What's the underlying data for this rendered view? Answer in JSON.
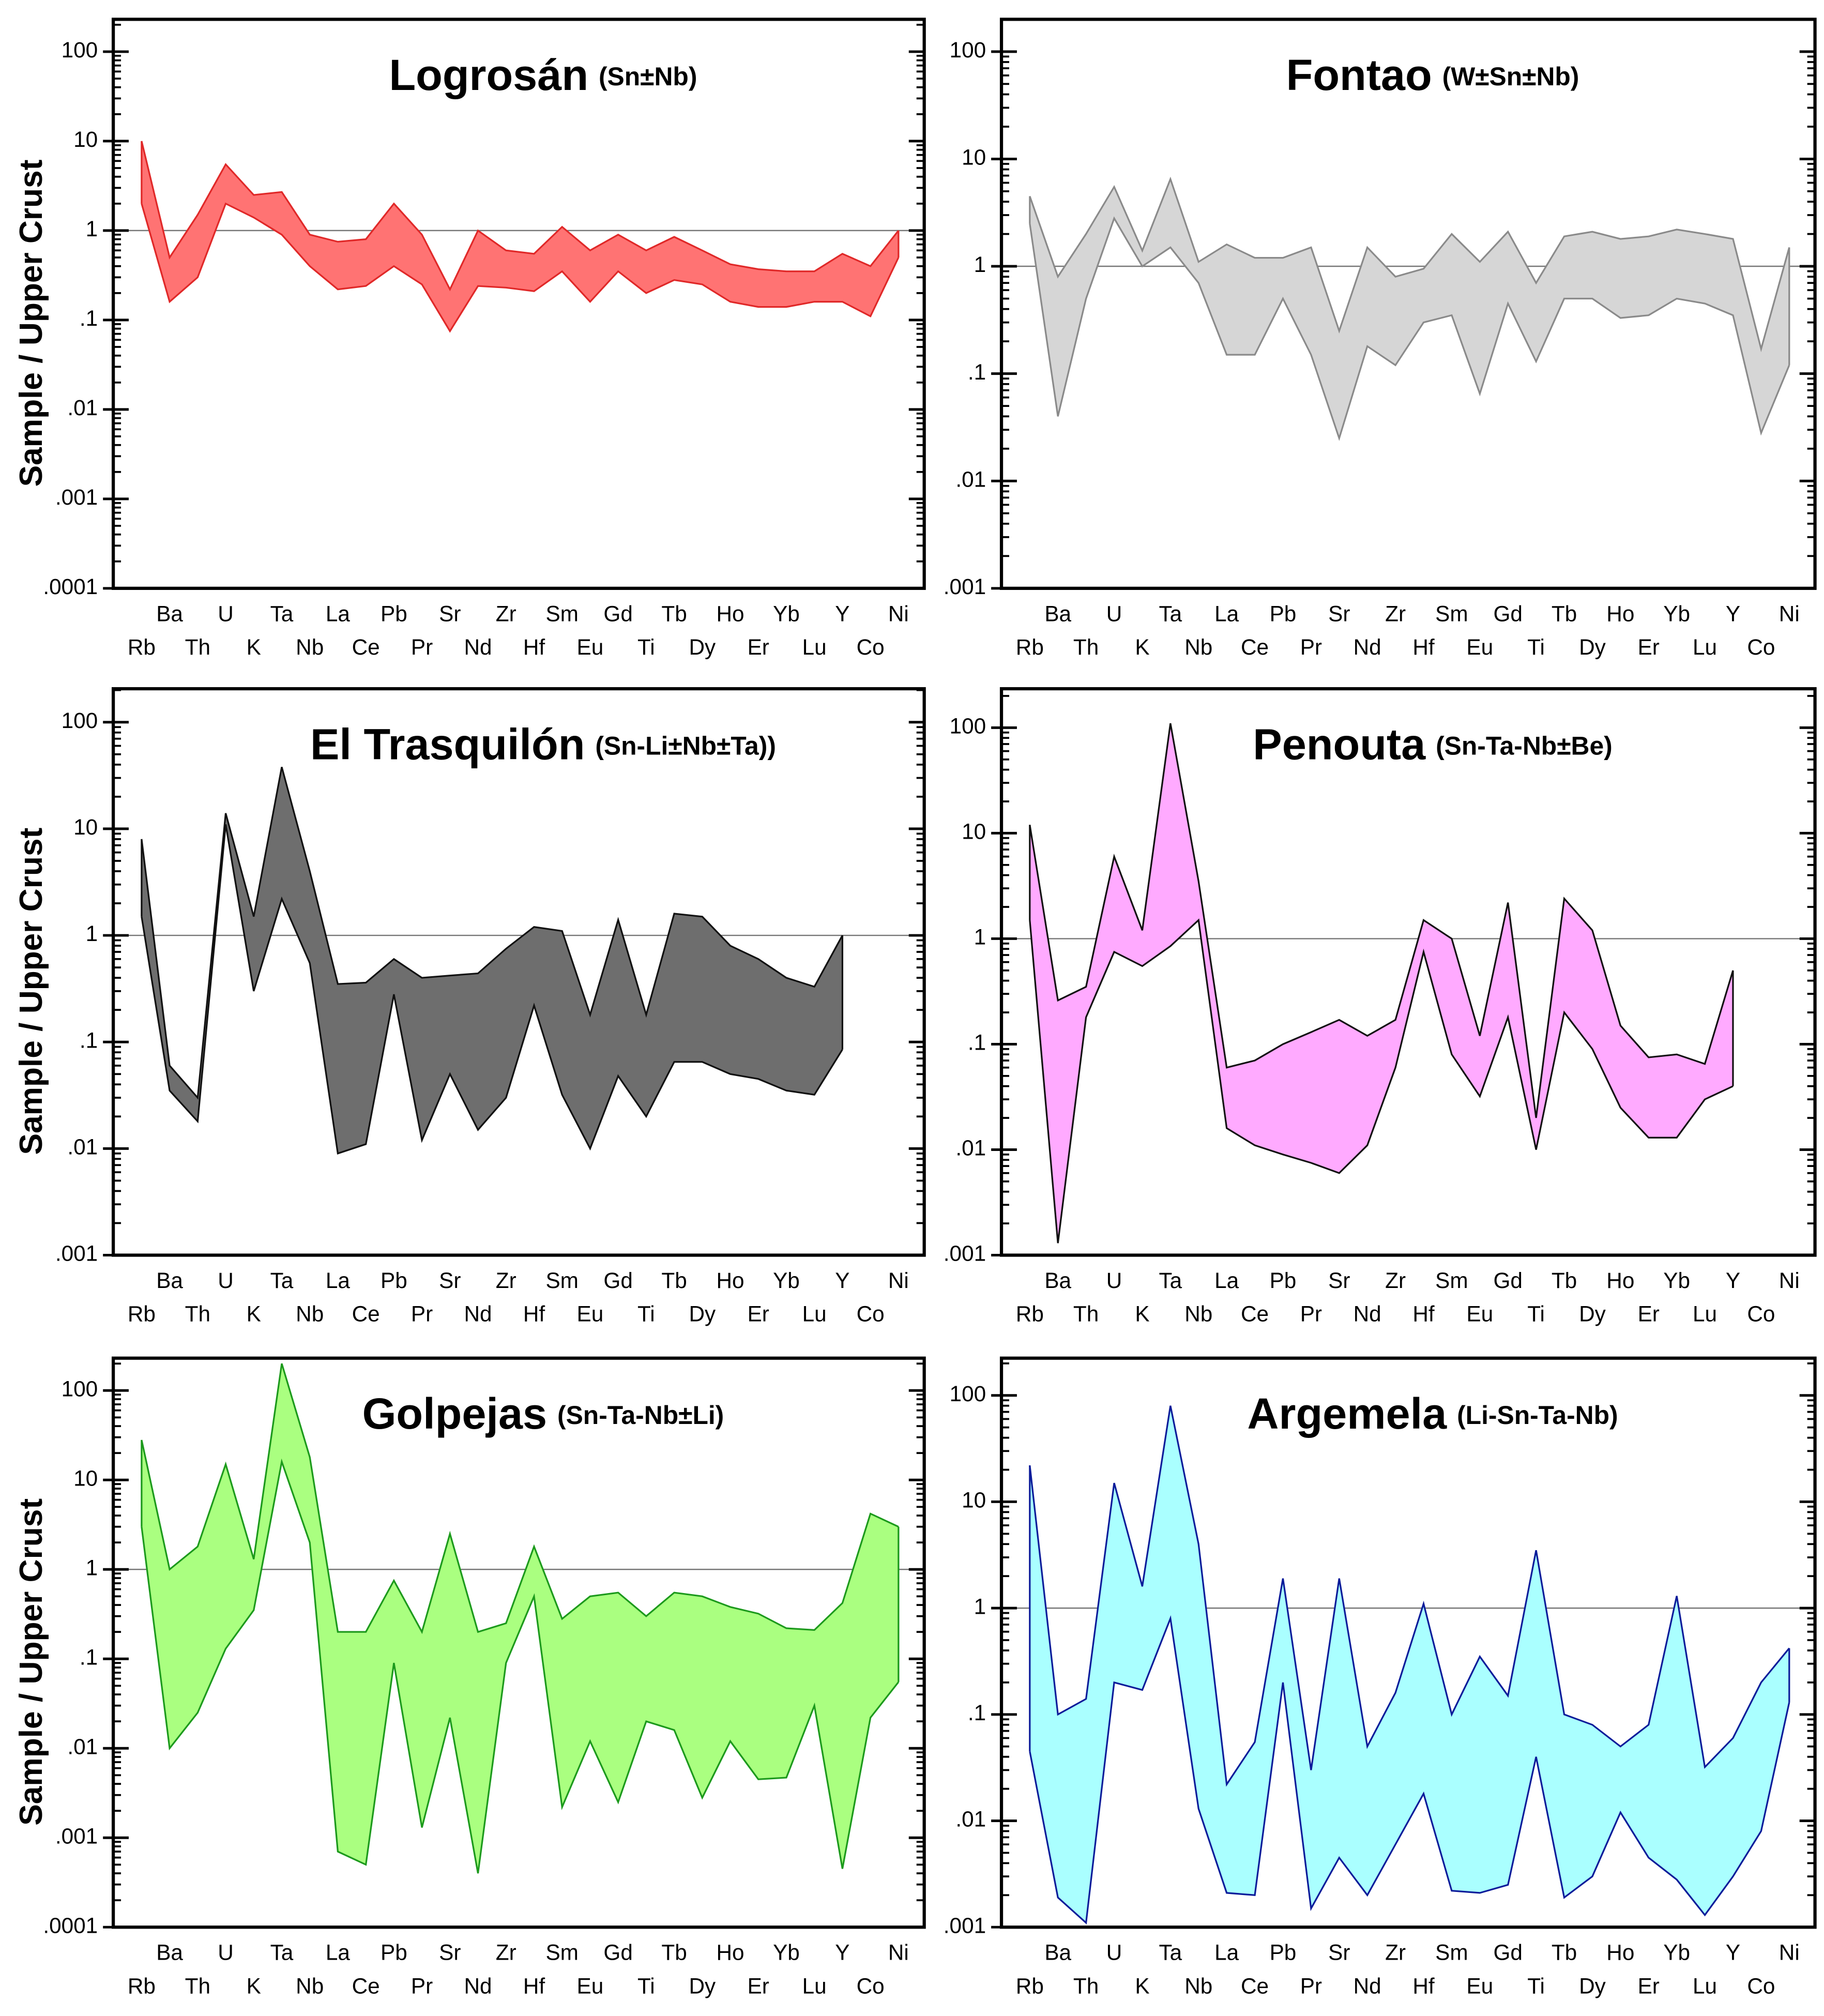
{
  "chart_data": [
    {
      "type": "area",
      "title": "Logrosán",
      "subtitle": "(Sn±Nb)",
      "ylabel": "Sample / Upper Crust",
      "log": true,
      "fill": "#ff7373",
      "color": "#e02828",
      "categories": [
        "Rb",
        "Ba",
        "Th",
        "U",
        "K",
        "Ta",
        "Nb",
        "La",
        "Ce",
        "Pb",
        "Pr",
        "Sr",
        "Nd",
        "Zr",
        "Hf",
        "Sm",
        "Eu",
        "Gd",
        "Ti",
        "Tb",
        "Dy",
        "Ho",
        "Er",
        "Yb",
        "Lu",
        "Y",
        "Co",
        "Ni"
      ],
      "ylim": [
        0.0001,
        230
      ],
      "yticks": [
        100,
        10,
        1,
        {
          "value": 0.1,
          "label": ".1"
        },
        {
          "value": 0.01,
          "label": ".01"
        },
        {
          "value": 0.001,
          "label": ".001"
        },
        {
          "value": 0.0001,
          "label": ".0001"
        }
      ],
      "hline": 1,
      "series": [
        {
          "values": [
            10,
            0.5,
            1.5,
            5.5,
            2.5,
            2.7,
            0.9,
            0.75,
            0.8,
            2,
            0.9,
            0.22,
            1,
            0.6,
            0.55,
            1.1,
            0.6,
            0.9,
            0.6,
            0.85,
            0.6,
            0.42,
            0.37,
            0.35,
            0.35,
            0.55,
            0.4,
            1
          ]
        },
        {
          "values": [
            2,
            0.16,
            0.3,
            2,
            1.4,
            0.9,
            0.4,
            0.22,
            0.24,
            0.4,
            0.25,
            0.075,
            0.24,
            0.23,
            0.21,
            0.35,
            0.16,
            0.35,
            0.2,
            0.28,
            0.25,
            0.16,
            0.14,
            0.14,
            0.16,
            0.16,
            0.11,
            0.5
          ]
        }
      ]
    },
    {
      "type": "area",
      "title": "Fontao",
      "subtitle": "(W±Sn±Nb)",
      "log": true,
      "fill": "#d6d6d6",
      "color": "#8a8a8a",
      "categories": [
        "Rb",
        "Ba",
        "Th",
        "U",
        "K",
        "Ta",
        "Nb",
        "La",
        "Ce",
        "Pb",
        "Pr",
        "Sr",
        "Nd",
        "Zr",
        "Hf",
        "Sm",
        "Eu",
        "Gd",
        "Ti",
        "Tb",
        "Dy",
        "Ho",
        "Er",
        "Yb",
        "Lu",
        "Y",
        "Co",
        "Ni"
      ],
      "ylim": [
        0.001,
        200
      ],
      "yticks": [
        100,
        10,
        1,
        {
          "value": 0.1,
          "label": ".1"
        },
        {
          "value": 0.01,
          "label": ".01"
        },
        {
          "value": 0.001,
          "label": ".001"
        }
      ],
      "hline": 1,
      "series": [
        {
          "values": [
            4.5,
            0.8,
            2,
            5.5,
            1.4,
            6.5,
            1.1,
            1.6,
            1.2,
            1.2,
            1.5,
            0.25,
            1.5,
            0.8,
            0.95,
            2,
            1.1,
            2.1,
            0.7,
            1.9,
            2.1,
            1.8,
            1.9,
            2.2,
            2,
            1.8,
            0.17,
            1.5
          ]
        },
        {
          "values": [
            2.5,
            0.04,
            0.5,
            2.8,
            1,
            1.5,
            0.7,
            0.15,
            0.15,
            0.5,
            0.15,
            0.025,
            0.18,
            0.12,
            0.3,
            0.35,
            0.065,
            0.45,
            0.13,
            0.5,
            0.5,
            0.33,
            0.35,
            0.5,
            0.45,
            0.35,
            0.028,
            0.12
          ]
        }
      ]
    },
    {
      "type": "area",
      "title": "El Trasquilón",
      "subtitle": "(Sn-Li±Nb±Ta))",
      "ylabel": "Sample / Upper Crust",
      "log": true,
      "fill": "#6e6e6e",
      "color": "#111111",
      "categories": [
        "Rb",
        "Ba",
        "Th",
        "U",
        "K",
        "Ta",
        "Nb",
        "La",
        "Ce",
        "Pb",
        "Pr",
        "Sr",
        "Nd",
        "Zr",
        "Hf",
        "Sm",
        "Eu",
        "Gd",
        "Ti",
        "Tb",
        "Dy",
        "Ho",
        "Er",
        "Yb",
        "Lu",
        "Y",
        "Co",
        "Ni"
      ],
      "ylim": [
        0.001,
        206
      ],
      "yticks": [
        100,
        10,
        1,
        {
          "value": 0.1,
          "label": ".1"
        },
        {
          "value": 0.01,
          "label": ".01"
        },
        {
          "value": 0.001,
          "label": ".001"
        }
      ],
      "hline": 1,
      "series": [
        {
          "values": [
            8,
            0.06,
            0.03,
            14,
            1.5,
            38,
            4,
            0.35,
            0.36,
            0.6,
            0.4,
            0.42,
            0.44,
            0.75,
            1.2,
            1.1,
            0.18,
            1.4,
            0.18,
            1.6,
            1.5,
            0.8,
            0.6,
            0.4,
            0.33,
            1,
            null,
            null
          ]
        },
        {
          "values": [
            1.5,
            0.035,
            0.018,
            11,
            0.3,
            2.2,
            0.55,
            0.009,
            0.011,
            0.28,
            0.012,
            0.05,
            0.015,
            0.03,
            0.22,
            0.032,
            0.01,
            0.048,
            0.02,
            0.065,
            0.065,
            0.05,
            0.045,
            0.035,
            0.032,
            0.085,
            null,
            null
          ]
        }
      ]
    },
    {
      "type": "area",
      "title": "Penouta",
      "subtitle": "(Sn-Ta-Nb±Be)",
      "log": true,
      "fill": "#ffaaff",
      "color": "#111111",
      "categories": [
        "Rb",
        "Ba",
        "Th",
        "U",
        "K",
        "Ta",
        "Nb",
        "La",
        "Ce",
        "Pb",
        "Pr",
        "Sr",
        "Nd",
        "Zr",
        "Hf",
        "Sm",
        "Eu",
        "Gd",
        "Ti",
        "Tb",
        "Dy",
        "Ho",
        "Er",
        "Yb",
        "Lu",
        "Y",
        "Co",
        "Ni"
      ],
      "ylim": [
        0.001,
        234
      ],
      "yticks": [
        100,
        10,
        1,
        {
          "value": 0.1,
          "label": ".1"
        },
        {
          "value": 0.01,
          "label": ".01"
        },
        {
          "value": 0.001,
          "label": ".001"
        }
      ],
      "hline": 1,
      "series": [
        {
          "values": [
            12,
            0.26,
            0.35,
            6,
            1.2,
            110,
            3.5,
            0.06,
            0.07,
            0.1,
            0.13,
            0.17,
            0.12,
            0.17,
            1.5,
            1,
            0.12,
            2.2,
            0.02,
            2.4,
            1.2,
            0.15,
            0.075,
            0.08,
            0.065,
            0.5,
            null,
            null
          ]
        },
        {
          "values": [
            1.5,
            0.0013,
            0.18,
            0.75,
            0.55,
            0.85,
            1.5,
            0.016,
            0.011,
            0.009,
            0.0075,
            0.006,
            0.011,
            0.06,
            0.75,
            0.08,
            0.032,
            0.18,
            0.01,
            0.2,
            0.09,
            0.025,
            0.013,
            0.013,
            0.03,
            0.04,
            null,
            null
          ]
        }
      ]
    },
    {
      "type": "area",
      "title": "Golpejas",
      "subtitle": "(Sn-Ta-Nb±Li)",
      "ylabel": "Sample / Upper Crust",
      "log": true,
      "fill": "#aaff80",
      "color": "#1c9a1c",
      "categories": [
        "Rb",
        "Ba",
        "Th",
        "U",
        "K",
        "Ta",
        "Nb",
        "La",
        "Ce",
        "Pb",
        "Pr",
        "Sr",
        "Nd",
        "Zr",
        "Hf",
        "Sm",
        "Eu",
        "Gd",
        "Ti",
        "Tb",
        "Dy",
        "Ho",
        "Er",
        "Yb",
        "Lu",
        "Y",
        "Co",
        "Ni"
      ],
      "ylim": [
        0.0001,
        230
      ],
      "yticks": [
        100,
        10,
        1,
        {
          "value": 0.1,
          "label": ".1"
        },
        {
          "value": 0.01,
          "label": ".01"
        },
        {
          "value": 0.001,
          "label": ".001"
        },
        {
          "value": 0.0001,
          "label": ".0001"
        }
      ],
      "hline": 1,
      "series": [
        {
          "values": [
            28,
            1,
            1.8,
            15,
            1.3,
            200,
            18,
            0.2,
            0.2,
            0.75,
            0.2,
            2.5,
            0.2,
            0.25,
            1.8,
            0.28,
            0.5,
            0.55,
            0.3,
            0.55,
            0.5,
            0.38,
            0.32,
            0.22,
            0.21,
            0.42,
            4.2,
            3
          ]
        },
        {
          "values": [
            3,
            0.01,
            0.025,
            0.13,
            0.35,
            16,
            2,
            0.0007,
            0.0005,
            0.09,
            0.0013,
            0.022,
            0.0004,
            0.09,
            0.5,
            0.0022,
            0.012,
            0.0025,
            0.02,
            0.016,
            0.0028,
            0.012,
            0.0045,
            0.0047,
            0.03,
            0.00045,
            0.022,
            0.055
          ]
        }
      ]
    },
    {
      "type": "area",
      "title": "Argemela",
      "subtitle": "(Li-Sn-Ta-Nb)",
      "log": true,
      "fill": "#aaffff",
      "color": "#0c1c9a",
      "categories": [
        "Rb",
        "Ba",
        "Th",
        "U",
        "K",
        "Ta",
        "Nb",
        "La",
        "Ce",
        "Pb",
        "Pr",
        "Sr",
        "Nd",
        "Zr",
        "Hf",
        "Sm",
        "Eu",
        "Gd",
        "Ti",
        "Tb",
        "Dy",
        "Ho",
        "Er",
        "Yb",
        "Lu",
        "Y",
        "Co",
        "Ni"
      ],
      "ylim": [
        0.001,
        224
      ],
      "yticks": [
        100,
        10,
        1,
        {
          "value": 0.1,
          "label": ".1"
        },
        {
          "value": 0.01,
          "label": ".01"
        },
        {
          "value": 0.001,
          "label": ".001"
        }
      ],
      "hline": 1,
      "series": [
        {
          "values": [
            22,
            0.1,
            0.14,
            15,
            1.6,
            80,
            4,
            0.022,
            0.055,
            1.9,
            0.03,
            1.9,
            0.05,
            0.16,
            1.1,
            0.1,
            0.35,
            0.15,
            3.5,
            0.1,
            0.08,
            0.05,
            0.08,
            1.3,
            0.032,
            0.06,
            0.2,
            0.42
          ]
        },
        {
          "values": [
            0.045,
            0.0019,
            0.0011,
            0.2,
            0.17,
            0.8,
            0.013,
            0.0021,
            0.002,
            0.2,
            0.0015,
            0.0045,
            0.002,
            0.006,
            0.018,
            0.0022,
            0.0021,
            0.0025,
            0.04,
            0.0019,
            0.003,
            0.012,
            0.0045,
            0.0028,
            0.0013,
            0.003,
            0.008,
            0.13
          ]
        }
      ]
    }
  ]
}
